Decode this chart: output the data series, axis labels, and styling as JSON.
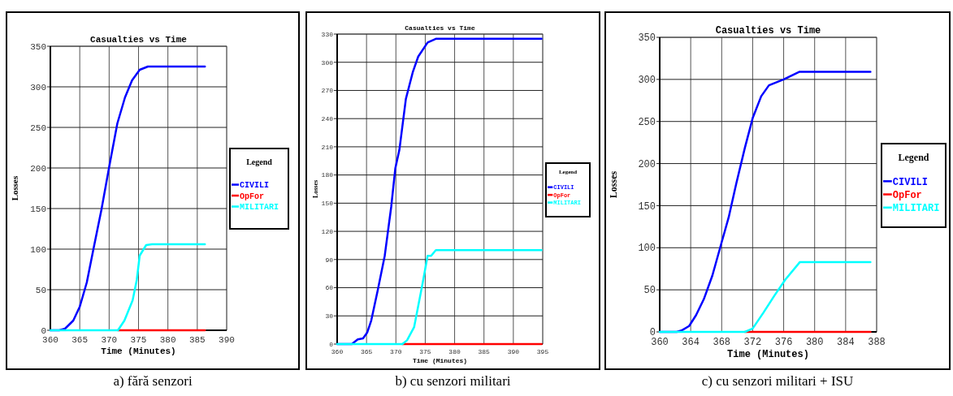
{
  "chart_data": [
    {
      "type": "line",
      "title": "Casualties vs Time",
      "xlabel": "Time (Minutes)",
      "ylabel": "Losses",
      "legend_title": "Legend",
      "legend": "right",
      "grid": true,
      "xlim": [
        360,
        390
      ],
      "xticks": [
        360,
        365,
        370,
        375,
        380,
        385,
        390
      ],
      "ylim": [
        0,
        350
      ],
      "yticks": [
        0,
        50,
        100,
        150,
        200,
        250,
        300,
        350
      ],
      "annotations": [
        "a) fără senzori"
      ],
      "series": [
        {
          "name": "CIVILI",
          "color": "#0000ff",
          "x": [
            360,
            361.5,
            362.5,
            363.9,
            365,
            366.2,
            367.3,
            368.7,
            370.1,
            371.4,
            372.7,
            373.9,
            375.2,
            376.6,
            386.3
          ],
          "values": [
            0,
            0,
            2,
            12,
            29,
            59,
            99,
            149,
            205,
            255,
            287,
            308,
            321,
            325,
            325
          ]
        },
        {
          "name": "OpFor",
          "color": "#ff0000",
          "x": [
            371.5,
            386.3
          ],
          "values": [
            0,
            0
          ]
        },
        {
          "name": "MILITARI",
          "color": "#00ffff",
          "x": [
            360,
            371.5,
            372.6,
            374,
            374.7,
            375.2,
            376.3,
            377.3,
            386.3
          ],
          "values": [
            0,
            0,
            12,
            37,
            62,
            92,
            105,
            106,
            106
          ]
        }
      ]
    },
    {
      "type": "line",
      "title": "Casualties vs Time",
      "xlabel": "Time (Minutes)",
      "ylabel": "Losses",
      "legend_title": "Legend",
      "legend": "right",
      "grid": true,
      "xlim": [
        360,
        395
      ],
      "xticks": [
        360,
        365,
        370,
        375,
        380,
        385,
        390,
        395
      ],
      "ylim": [
        0,
        330
      ],
      "yticks": [
        0,
        30,
        60,
        90,
        120,
        150,
        180,
        210,
        240,
        270,
        300,
        330
      ],
      "annotations": [
        "b) cu senzori militari"
      ],
      "series": [
        {
          "name": "CIVILI",
          "color": "#0000ff",
          "x": [
            360,
            362.5,
            363.5,
            364.4,
            365.1,
            365.8,
            366.9,
            368.1,
            369.2,
            369.9,
            370.6,
            371.7,
            372.9,
            373.8,
            375.4,
            376.8,
            394.8
          ],
          "values": [
            0,
            0,
            5,
            6,
            12,
            25,
            57,
            94,
            146,
            187,
            207,
            261,
            290,
            306,
            321,
            325,
            325
          ]
        },
        {
          "name": "OpFor",
          "color": "#ff0000",
          "x": [
            371.1,
            394.8
          ],
          "values": [
            0,
            0
          ]
        },
        {
          "name": "MILITARI",
          "color": "#00ffff",
          "x": [
            360,
            371.1,
            371.9,
            373.1,
            374.5,
            375.4,
            376,
            376.8,
            394.8
          ],
          "values": [
            0,
            0,
            4,
            18,
            63,
            94,
            94,
            100,
            100
          ]
        }
      ]
    },
    {
      "type": "line",
      "title": "Casualties vs Time",
      "xlabel": "Time (Minutes)",
      "ylabel": "Losses",
      "legend_title": "Legend",
      "legend": "right",
      "grid": true,
      "xlim": [
        360,
        388
      ],
      "xticks": [
        360,
        364,
        368,
        372,
        376,
        380,
        384,
        388
      ],
      "ylim": [
        0,
        350
      ],
      "yticks": [
        0,
        50,
        100,
        150,
        200,
        250,
        300,
        350
      ],
      "annotations": [
        "c) cu senzori militari + ISU"
      ],
      "series": [
        {
          "name": "CIVILI",
          "color": "#0000ff",
          "x": [
            360,
            362.2,
            362.9,
            363.8,
            364.7,
            365.7,
            366.8,
            367.8,
            368.9,
            369.9,
            371,
            372,
            373.1,
            374.1,
            376,
            378,
            387.2
          ],
          "values": [
            0,
            0,
            2,
            7,
            20,
            39,
            67,
            100,
            136,
            177,
            219,
            254,
            280,
            293,
            300,
            309,
            309
          ]
        },
        {
          "name": "OpFor",
          "color": "#ff0000",
          "x": [
            371,
            387.2
          ],
          "values": [
            0,
            0
          ]
        },
        {
          "name": "MILITARI",
          "color": "#00ffff",
          "x": [
            360,
            371,
            372,
            373.4,
            374.8,
            376.2,
            378.1,
            387.2
          ],
          "values": [
            0,
            0,
            4,
            23,
            43,
            62,
            83,
            83
          ]
        }
      ]
    }
  ]
}
